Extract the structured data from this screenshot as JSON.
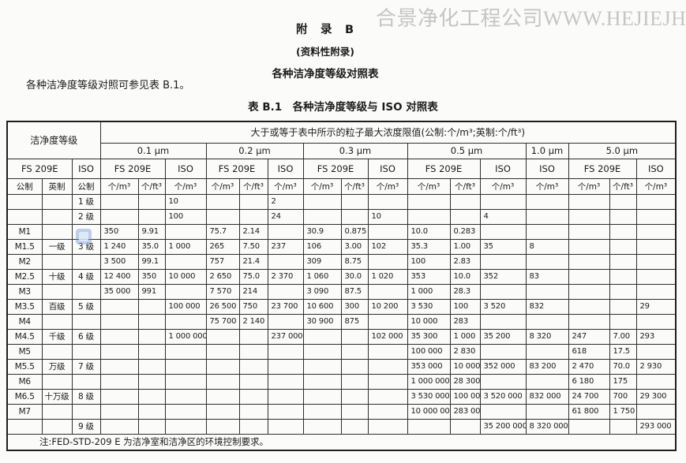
{
  "watermark": "合景净化工程公司WWW.HEJIEJH.COM",
  "header": {
    "appendix_title": "附　录　B",
    "appendix_subtitle": "(资料性附录)",
    "appendix_heading": "各种洁净度等级对照表",
    "intro_text": "各种洁净度等级对照可参见表 B.1。",
    "table_caption": "表 B.1　各种洁净度等级与 ISO 对照表"
  },
  "table": {
    "header_rows": [
      [
        {
          "label": "洁净度等级",
          "colspan": 3,
          "rowspan": 2
        },
        {
          "label": "大于或等于表中所示的粒子最大浓度限值(公制:个/m³;英制:个/ft³)",
          "colspan": 16
        }
      ],
      [
        {
          "label": "0.1 μm",
          "colspan": 3
        },
        {
          "label": "0.2 μm",
          "colspan": 3
        },
        {
          "label": "0.3 μm",
          "colspan": 3
        },
        {
          "label": "0.5 μm",
          "colspan": 3
        },
        {
          "label": "1.0 μm",
          "colspan": 1
        },
        {
          "label": "5.0 μm",
          "colspan": 3
        }
      ],
      [
        {
          "label": "FS 209E",
          "colspan": 2
        },
        {
          "label": "ISO",
          "colspan": 1
        },
        {
          "label": "FS 209E",
          "colspan": 2
        },
        {
          "label": "ISO",
          "colspan": 1
        },
        {
          "label": "FS 209E",
          "colspan": 2
        },
        {
          "label": "ISO",
          "colspan": 1
        },
        {
          "label": "FS 209E",
          "colspan": 2
        },
        {
          "label": "ISO",
          "colspan": 1
        },
        {
          "label": "FS 209E",
          "colspan": 2
        },
        {
          "label": "ISO",
          "colspan": 1
        },
        {
          "label": "ISO",
          "colspan": 1
        },
        {
          "label": "FS 209E",
          "colspan": 2
        },
        {
          "label": "ISO",
          "colspan": 1
        }
      ],
      [
        {
          "label": "公制"
        },
        {
          "label": "英制"
        },
        {
          "label": "公制"
        },
        {
          "label": "个/m³"
        },
        {
          "label": "个/ft³"
        },
        {
          "label": "个/m³"
        },
        {
          "label": "个/m³"
        },
        {
          "label": "个/ft³"
        },
        {
          "label": "个/m³"
        },
        {
          "label": "个/m³"
        },
        {
          "label": "个/ft³"
        },
        {
          "label": "个/m³"
        },
        {
          "label": "个/m³"
        },
        {
          "label": "个/ft³"
        },
        {
          "label": "个/m³"
        },
        {
          "label": "个/m³"
        },
        {
          "label": "个/m³"
        },
        {
          "label": "个/ft³"
        },
        {
          "label": "个/m³"
        }
      ]
    ],
    "rows": [
      [
        "",
        "",
        "1 级",
        "",
        "",
        "10",
        "",
        "",
        "2",
        "",
        "",
        "",
        "",
        "",
        "",
        "",
        "",
        "",
        ""
      ],
      [
        "",
        "",
        "2 级",
        "",
        "",
        "100",
        "",
        "",
        "24",
        "",
        "",
        "10",
        "",
        "",
        "4",
        "",
        "",
        "",
        ""
      ],
      [
        "M1",
        "",
        "",
        "350",
        "9.91",
        "",
        "75.7",
        "2.14",
        "",
        "30.9",
        "0.875",
        "",
        "10.0",
        "0.283",
        "",
        "",
        "",
        "",
        ""
      ],
      [
        "M1.5",
        "一级",
        "3 级",
        "1 240",
        "35.0",
        "1 000",
        "265",
        "7.50",
        "237",
        "106",
        "3.00",
        "102",
        "35.3",
        "1.00",
        "35",
        "8",
        "",
        "",
        ""
      ],
      [
        "M2",
        "",
        "",
        "3 500",
        "99.1",
        "",
        "757",
        "21.4",
        "",
        "309",
        "8.75",
        "",
        "100",
        "2.83",
        "",
        "",
        "",
        "",
        ""
      ],
      [
        "M2.5",
        "十级",
        "4 级",
        "12 400",
        "350",
        "10 000",
        "2 650",
        "75.0",
        "2 370",
        "1 060",
        "30.0",
        "1 020",
        "353",
        "10.0",
        "352",
        "83",
        "",
        "",
        ""
      ],
      [
        "M3",
        "",
        "",
        "35 000",
        "991",
        "",
        "7 570",
        "214",
        "",
        "3 090",
        "87.5",
        "",
        "1 000",
        "28.3",
        "",
        "",
        "",
        "",
        ""
      ],
      [
        "M3.5",
        "百级",
        "5 级",
        "",
        "",
        "100 000",
        "26 500",
        "750",
        "23 700",
        "10 600",
        "300",
        "10 200",
        "3 530",
        "100",
        "3 520",
        "832",
        "",
        "",
        "29"
      ],
      [
        "M4",
        "",
        "",
        "",
        "",
        "",
        "75 700",
        "2 140",
        "",
        "30 900",
        "875",
        "",
        "10 000",
        "283",
        "",
        "",
        "",
        "",
        ""
      ],
      [
        "M4.5",
        "千级",
        "6 级",
        "",
        "",
        "1 000 000",
        "",
        "",
        "237 000",
        "",
        "",
        "102 000",
        "35 300",
        "1 000",
        "35 200",
        "8 320",
        "247",
        "7.00",
        "293"
      ],
      [
        "M5",
        "",
        "",
        "",
        "",
        "",
        "",
        "",
        "",
        "",
        "",
        "",
        "100 000",
        "2 830",
        "",
        "",
        "618",
        "17.5",
        ""
      ],
      [
        "M5.5",
        "万级",
        "7 级",
        "",
        "",
        "",
        "",
        "",
        "",
        "",
        "",
        "",
        "353 000",
        "10 000",
        "352 000",
        "83 200",
        "2 470",
        "70.0",
        "2 930"
      ],
      [
        "M6",
        "",
        "",
        "",
        "",
        "",
        "",
        "",
        "",
        "",
        "",
        "",
        "1 000 000",
        "28 300",
        "",
        "",
        "6 180",
        "175",
        ""
      ],
      [
        "M6.5",
        "十万级",
        "8 级",
        "",
        "",
        "",
        "",
        "",
        "",
        "",
        "",
        "",
        "3 530 000",
        "100 000",
        "3 520 000",
        "832 000",
        "24 700",
        "700",
        "29 300"
      ],
      [
        "M7",
        "",
        "",
        "",
        "",
        "",
        "",
        "",
        "",
        "",
        "",
        "",
        "10 000 000",
        "283 000",
        "",
        "",
        "61 800",
        "1 750",
        ""
      ],
      [
        "",
        "",
        "9 级",
        "",
        "",
        "",
        "",
        "",
        "",
        "",
        "",
        "",
        "",
        "",
        "35 200 000",
        "8 320 000",
        "",
        "",
        "293 000"
      ]
    ],
    "note": "注:FED-STD-209 E 为洁净室和洁净区的环境控制要求。"
  }
}
